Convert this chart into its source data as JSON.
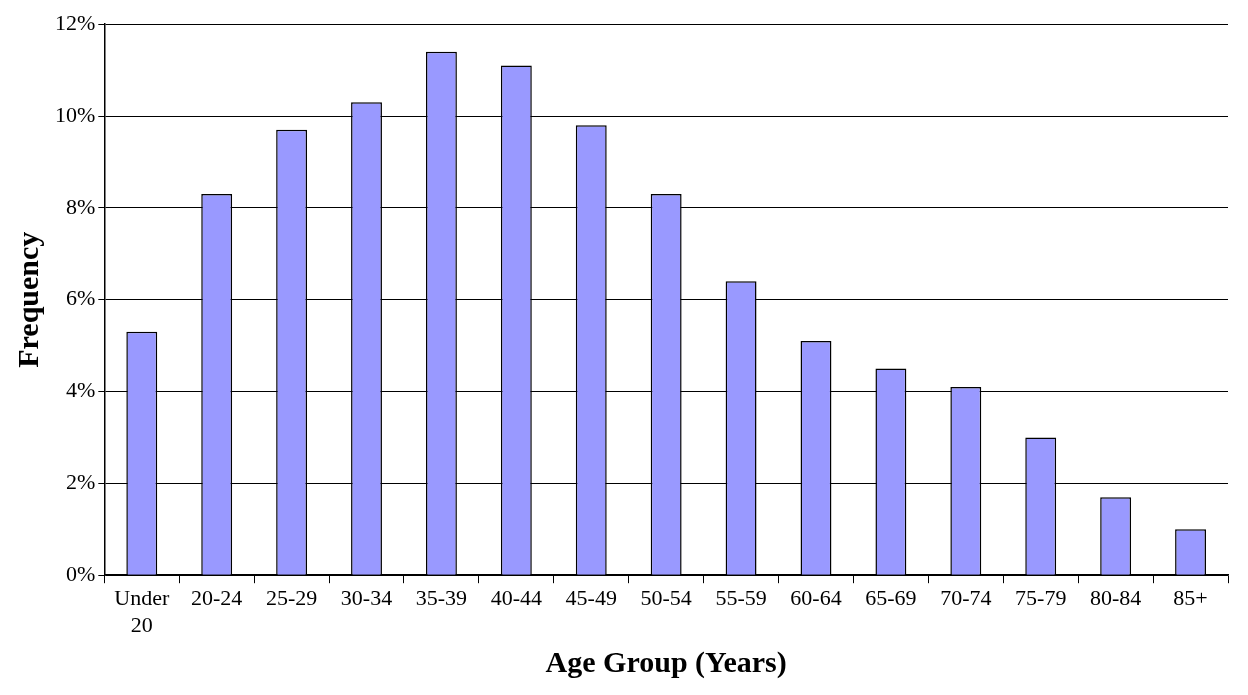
{
  "chart_data": {
    "type": "bar",
    "xlabel": "Age Group (Years)",
    "ylabel": "Frequency",
    "categories": [
      "Under 20",
      "20-24",
      "25-29",
      "30-34",
      "35-39",
      "40-44",
      "45-49",
      "50-54",
      "55-59",
      "60-64",
      "65-69",
      "70-74",
      "75-79",
      "80-84",
      "85+"
    ],
    "values": [
      5.3,
      8.3,
      9.7,
      10.3,
      11.4,
      11.1,
      9.8,
      8.3,
      6.4,
      5.1,
      4.5,
      4.1,
      3.0,
      1.7,
      1.0
    ],
    "color": "#9999ff",
    "ylim": [
      0,
      12
    ],
    "yticks": [
      {
        "value": 0,
        "label": "0%"
      },
      {
        "value": 2,
        "label": "2%"
      },
      {
        "value": 4,
        "label": "4%"
      },
      {
        "value": 6,
        "label": "6%"
      },
      {
        "value": 8,
        "label": "8%"
      },
      {
        "value": 10,
        "label": "10%"
      },
      {
        "value": 12,
        "label": "12%"
      }
    ],
    "grid": "y",
    "legend": false
  }
}
